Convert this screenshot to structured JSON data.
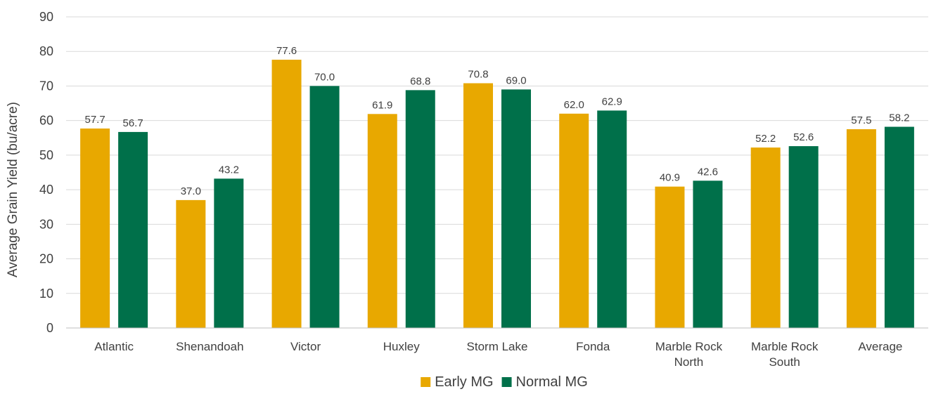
{
  "chart_data": {
    "type": "bar",
    "title": "",
    "xlabel": "",
    "ylabel": "Average Grain Yield (bu/acre)",
    "ylim": [
      0,
      90
    ],
    "y_ticks": [
      0,
      10,
      20,
      30,
      40,
      50,
      60,
      70,
      80,
      90
    ],
    "grid": true,
    "legend_position": "bottom",
    "categories": [
      [
        "Atlantic"
      ],
      [
        "Shenandoah"
      ],
      [
        "Victor"
      ],
      [
        "Huxley"
      ],
      [
        "Storm Lake"
      ],
      [
        "Fonda"
      ],
      [
        "Marble Rock",
        "North"
      ],
      [
        "Marble Rock",
        "South"
      ],
      [
        "Average"
      ]
    ],
    "series": [
      {
        "name": "Early MG",
        "color": "#E8A800",
        "values": [
          57.7,
          37.0,
          77.6,
          61.9,
          70.8,
          62.0,
          40.9,
          52.2,
          57.5
        ]
      },
      {
        "name": "Normal MG",
        "color": "#00704A",
        "values": [
          56.7,
          43.2,
          70.0,
          68.8,
          69.0,
          62.9,
          42.6,
          52.6,
          58.2
        ]
      }
    ]
  }
}
